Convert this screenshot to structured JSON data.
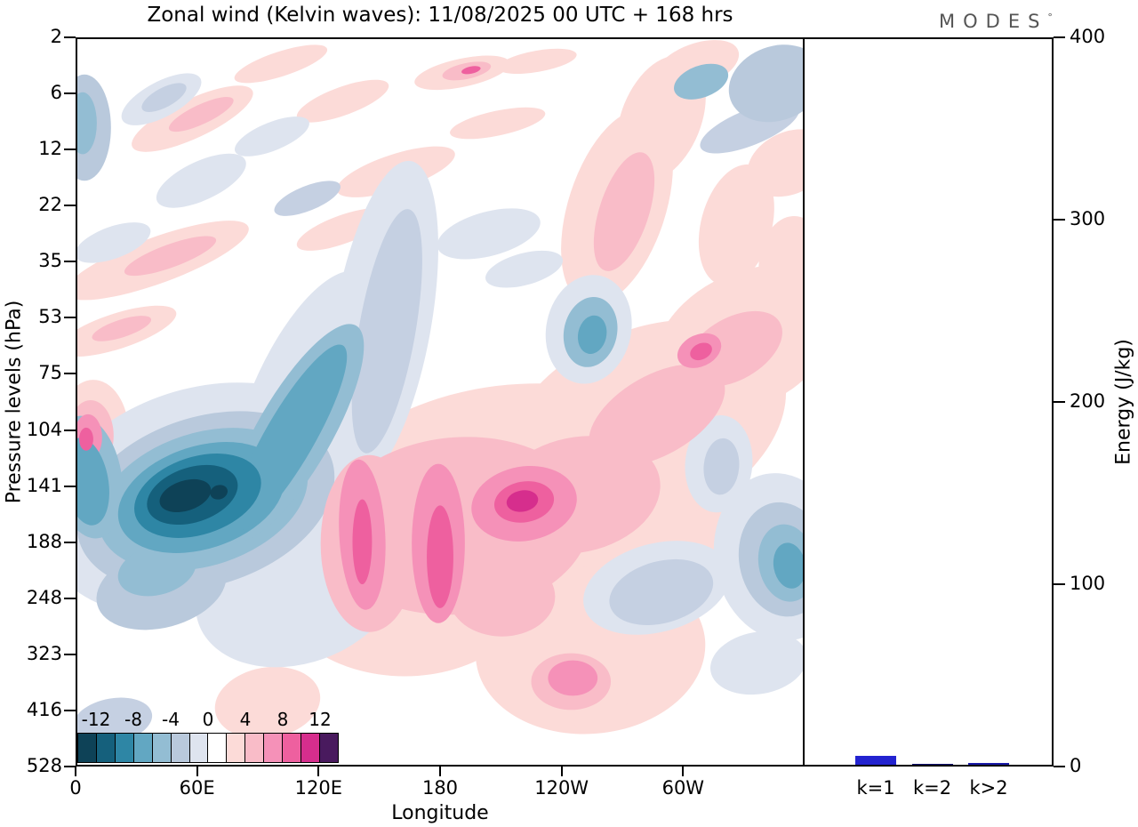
{
  "header": {
    "title": "Zonal wind (Kelvin waves):  11/08/2025  00 UTC  + 168 hrs",
    "logo": "MODES",
    "logo_degree": "°"
  },
  "chart_data": [
    {
      "type": "heatmap",
      "title": "Zonal wind (Kelvin waves): 11/08/2025 00 UTC + 168 hrs",
      "xlabel": "Longitude",
      "ylabel": "Pressure levels (hPa)",
      "x_ticks": [
        "0",
        "60E",
        "120E",
        "180",
        "120W",
        "60W"
      ],
      "y_ticks": [
        "2",
        "6",
        "12",
        "22",
        "35",
        "53",
        "75",
        "104",
        "141",
        "188",
        "248",
        "323",
        "416",
        "528"
      ],
      "contour_interval": 2,
      "levels_range": [
        -14,
        14
      ],
      "legend_labels": [
        "-12",
        "-8",
        "-4",
        "0",
        "4",
        "8",
        "12"
      ],
      "legend_colors": [
        "#0e4257",
        "#15607c",
        "#2e86a5",
        "#62a7c2",
        "#93bdd3",
        "#b9c9dc",
        "#dee4ef",
        "#ffffff",
        "#fcdbd8",
        "#f9bcc8",
        "#f591b8",
        "#ee609f",
        "#d62e8d",
        "#491a5e"
      ],
      "features": [
        {
          "sign": "negative",
          "description": "Easterly anomaly core below -12 m/s centered near 60E at 141-188 hPa, tilting westward with height"
        },
        {
          "sign": "positive",
          "description": "Westerly anomaly above 8 m/s spanning 140E-150W near 104-248 hPa, band tilting upward-eastward toward 60W at upper levels"
        },
        {
          "sign": "mixed",
          "description": "Weak alternating anomalies (|u| < 4 m/s) in the stratosphere above 75 hPa"
        }
      ]
    },
    {
      "type": "bar",
      "categories": [
        "k=1",
        "k=2",
        "k>2"
      ],
      "values": [
        5,
        0.7,
        1.2
      ],
      "ylabel": "Energy (J/kg)",
      "ylim": [
        0,
        400
      ],
      "y_ticks": [
        "0",
        "100",
        "200",
        "300",
        "400"
      ],
      "bar_colors": [
        "#2323d0",
        "#10106e",
        "#1a1aa8"
      ]
    }
  ]
}
